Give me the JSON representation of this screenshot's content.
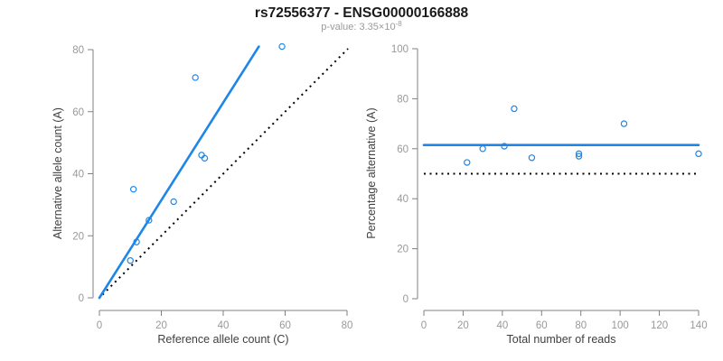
{
  "header": {
    "title": "rs72556377 - ENSG00000166888",
    "subtitle_prefix": "p-value: 3.35×10",
    "subtitle_exponent": "-8"
  },
  "colors": {
    "accent_blue": "#1e86e8",
    "dotted_line_black": "#000000",
    "axis_line_gray": "#808080",
    "tick_label_gray": "#999999",
    "axis_title_color": "#404040",
    "title_color": "#1a1a1a",
    "subtitle_gray": "#9a9a9a"
  },
  "chart_data": [
    {
      "type": "scatter",
      "panel": "left",
      "xlabel": "Reference allele count (C)",
      "ylabel": "Alternative allele count (A)",
      "xlim": [
        0,
        80
      ],
      "ylim": [
        0,
        80
      ],
      "xticks": [
        0,
        20,
        40,
        60,
        80
      ],
      "yticks": [
        0,
        20,
        40,
        60,
        80
      ],
      "grid": false,
      "marker": "open-circle",
      "points": [
        [
          10,
          12
        ],
        [
          11,
          35
        ],
        [
          12,
          18
        ],
        [
          16,
          25
        ],
        [
          24,
          31
        ],
        [
          31,
          71
        ],
        [
          33,
          46
        ],
        [
          34,
          45
        ],
        [
          59,
          81
        ]
      ],
      "fit_line": {
        "x1": 0,
        "y1": 0,
        "x2": 51.5,
        "y2": 81,
        "style": "solid",
        "color": "#1e86e8"
      },
      "reference_line": {
        "x1": 1,
        "y1": 1,
        "x2": 80.3,
        "y2": 80.3,
        "style": "dotted",
        "color": "#000000",
        "meaning": "identity y=x"
      }
    },
    {
      "type": "scatter",
      "panel": "right",
      "xlabel": "Total number of reads",
      "ylabel": "Percentage alternative (A)",
      "xlim": [
        0,
        140
      ],
      "ylim": [
        0,
        100
      ],
      "xticks": [
        0,
        20,
        40,
        60,
        80,
        100,
        120,
        140
      ],
      "yticks": [
        0,
        20,
        40,
        60,
        80,
        100
      ],
      "grid": false,
      "marker": "open-circle",
      "points": [
        [
          22,
          54.5
        ],
        [
          30,
          60
        ],
        [
          41,
          61
        ],
        [
          46,
          76
        ],
        [
          55,
          56.4
        ],
        [
          79,
          57
        ],
        [
          79,
          58
        ],
        [
          102,
          70
        ],
        [
          140,
          58
        ]
      ],
      "fit_line": {
        "x1": 0,
        "y1": 61.5,
        "x2": 140,
        "y2": 61.5,
        "style": "solid",
        "color": "#1e86e8",
        "meaning": "mean percentage alternative"
      },
      "reference_line": {
        "x1": 0,
        "y1": 50,
        "x2": 140,
        "y2": 50,
        "style": "dotted",
        "color": "#000000",
        "meaning": "50% expectation"
      }
    }
  ]
}
